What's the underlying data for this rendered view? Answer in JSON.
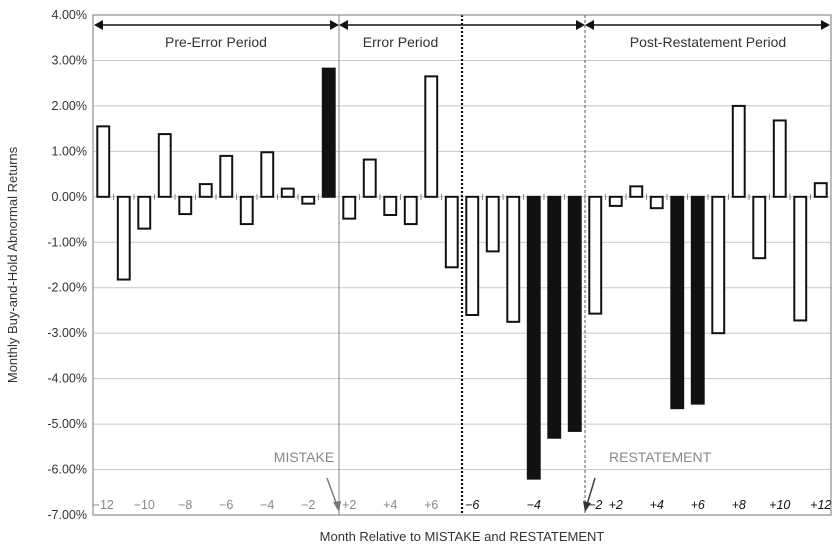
{
  "chart_data": {
    "type": "bar",
    "ylabel": "Monthly Buy-and-Hold Abnormal Returns",
    "xlabel": "Month Relative to MISTAKE and RESTATEMENT",
    "ylim": [
      -7.0,
      4.0
    ],
    "yticks": [
      4,
      3,
      2,
      1,
      0,
      -1,
      -2,
      -3,
      -4,
      -5,
      -6,
      -7
    ],
    "ytick_labels": [
      "4.00%",
      "3.00%",
      "2.00%",
      "1.00%",
      "0.00%",
      "-1.00%",
      "-2.00%",
      "-3.00%",
      "-4.00%",
      "-5.00%",
      "-6.00%",
      "-7.00%"
    ],
    "grid": "horizontal",
    "periods": [
      {
        "label": "Pre-Error Period"
      },
      {
        "label": "Error Period"
      },
      {
        "label": "Post-Restatement Period"
      }
    ],
    "events": [
      {
        "label": "MISTAKE"
      },
      {
        "label": "RESTATEMENT"
      }
    ],
    "xtick_labels": [
      {
        "label": "−12",
        "group": "pre"
      },
      {
        "label": "−10",
        "group": "pre"
      },
      {
        "label": "−8",
        "group": "pre"
      },
      {
        "label": "−6",
        "group": "pre"
      },
      {
        "label": "−4",
        "group": "pre"
      },
      {
        "label": "−2",
        "group": "pre"
      },
      {
        "label": "+2",
        "group": "err"
      },
      {
        "label": "+4",
        "group": "err"
      },
      {
        "label": "+6",
        "group": "err"
      },
      {
        "label": "−6",
        "group": "mid"
      },
      {
        "label": "−4",
        "group": "mid"
      },
      {
        "label": "−2",
        "group": "mid"
      },
      {
        "label": "+2",
        "group": "post"
      },
      {
        "label": "+4",
        "group": "post"
      },
      {
        "label": "+6",
        "group": "post"
      },
      {
        "label": "+8",
        "group": "post"
      },
      {
        "label": "+10",
        "group": "post"
      },
      {
        "label": "+12",
        "group": "post"
      }
    ],
    "series": [
      {
        "values": [
          1.55,
          -1.82,
          -0.7,
          1.38,
          -0.38,
          0.28,
          0.9,
          -0.6,
          0.98,
          0.18,
          -0.15,
          2.82,
          -0.48,
          0.82,
          -0.4,
          -0.6,
          2.65,
          -1.55,
          -2.6,
          -1.2,
          -2.75,
          -6.2,
          -5.3,
          -5.15,
          -2.57,
          -0.2,
          0.23,
          -0.25,
          -4.65,
          -4.55,
          -3.0,
          2.0,
          -1.35,
          1.68,
          -2.72,
          0.3
        ],
        "filled": [
          false,
          false,
          false,
          false,
          false,
          false,
          false,
          false,
          false,
          false,
          false,
          true,
          false,
          false,
          false,
          false,
          false,
          false,
          false,
          false,
          false,
          true,
          true,
          true,
          false,
          false,
          false,
          false,
          true,
          true,
          false,
          false,
          false,
          false,
          false,
          false
        ]
      }
    ]
  }
}
